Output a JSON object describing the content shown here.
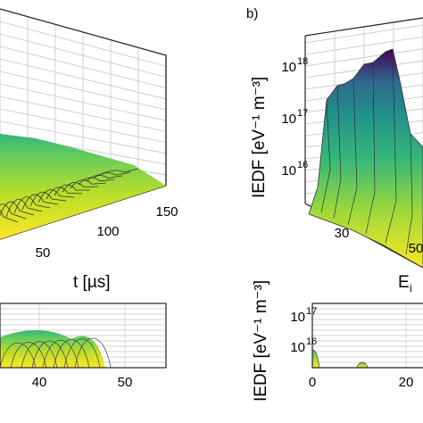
{
  "panels": [
    {
      "id": "a",
      "label": "",
      "x_tick_labels": [
        "50",
        "100",
        "150"
      ],
      "xlabel": "t [µs]"
    },
    {
      "id": "b",
      "label": "b)",
      "z_tick_labels": [
        "10",
        "10",
        "10"
      ],
      "z_tick_exponents": [
        "18",
        "17",
        "16"
      ],
      "zlabel": "IEDF [eV⁻¹ m⁻³]",
      "x_tick_labels": [
        "30",
        "50"
      ],
      "xlabel": "E",
      "xlabel_sub": "i"
    },
    {
      "id": "c",
      "label": "",
      "x_tick_labels": [
        "40",
        "50"
      ]
    },
    {
      "id": "d",
      "label": "",
      "y_tick_labels": [
        "10",
        "10"
      ],
      "y_tick_exponents": [
        "17",
        "16"
      ],
      "ylabel": "IEDF [eV⁻¹ m⁻³]",
      "x_tick_labels": [
        "0",
        "20"
      ]
    }
  ],
  "chart_data": [
    {
      "type": "area",
      "panel": "a",
      "description_axes": "3D waterfall",
      "xlabel": "t [µs]",
      "x_ticks": [
        50,
        100,
        150
      ],
      "series_count": 16
    },
    {
      "type": "area",
      "panel": "b",
      "zlabel": "IEDF [eV⁻¹ m⁻³]",
      "z_scale": "log",
      "z_ticks": [
        "10^16",
        "10^17",
        "10^18"
      ],
      "x_ticks": [
        30,
        50
      ],
      "peak_z_log10": 18.0
    },
    {
      "type": "area",
      "panel": "c",
      "x_ticks": [
        40,
        50
      ],
      "x_end_of_signal": 47
    },
    {
      "type": "area",
      "panel": "d",
      "ylabel": "IEDF [eV⁻¹ m⁻³]",
      "y_scale": "log",
      "y_ticks": [
        "10^16",
        "10^17"
      ],
      "x_ticks": [
        0,
        20
      ]
    }
  ],
  "colors": {
    "viridis_low": "#fde725",
    "viridis_mid": "#21918c",
    "viridis_high": "#440154",
    "grid": "#b8b8b8",
    "axis": "#222222"
  }
}
